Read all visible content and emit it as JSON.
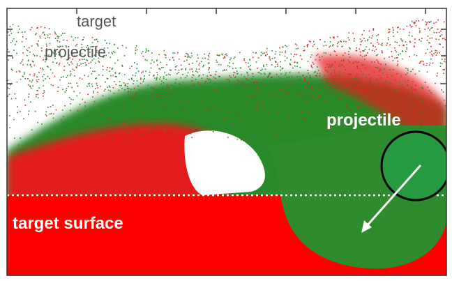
{
  "legend": {
    "items": [
      "target",
      "projectile"
    ]
  },
  "labels": {
    "projectile": "projectile",
    "surface": "target surface"
  }
}
